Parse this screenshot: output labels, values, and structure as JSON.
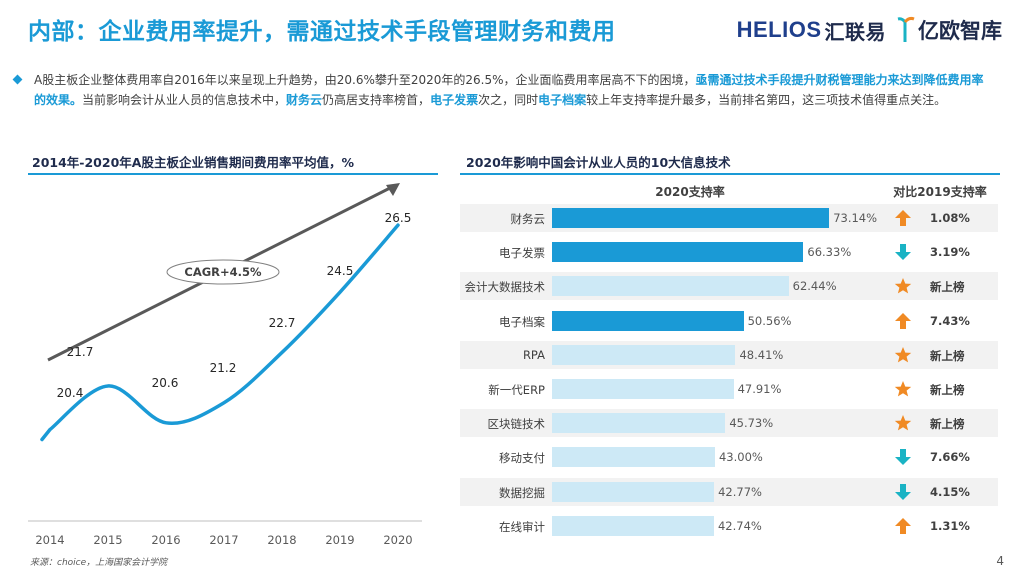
{
  "title": "内部：企业费用率提升，需通过技术手段管理财务和费用",
  "logos": {
    "helios": "HELIOS",
    "helios_cn": "汇联易",
    "yiou": "亿欧智库"
  },
  "bullet": {
    "p1": "A股主板企业整体费用率自2016年以来呈现上升趋势，由20.6%攀升至2020年的26.5%，企业面临费用率居高不下的困境，",
    "p1_hl": "亟需通过技术手段提升财税管理能力来达到降低费用率的效果。",
    "p2": "当前影响会计从业人员的信息技术中，",
    "p2_hl1": "财务云",
    "p3": "仍高居支持率榜首，",
    "p3_hl2": "电子发票",
    "p4": "次之，同时",
    "p4_hl3": "电子档案",
    "p5": "较上年支持率提升最多，当前排名第四，这三项技术值得重点关注。"
  },
  "left_chart_title": "2014年-2020年A股主板企业销售期间费用率平均值，%",
  "right_chart_title": "2020年影响中国会计从业人员的10大信息技术",
  "chart_data": [
    {
      "type": "line",
      "title": "2014年-2020年A股主板企业销售期间费用率平均值，%",
      "x": [
        "2014",
        "2015",
        "2016",
        "2017",
        "2018",
        "2019",
        "2020"
      ],
      "values": [
        20.4,
        21.7,
        20.6,
        21.2,
        22.7,
        24.5,
        26.5
      ],
      "labels": [
        "20.4",
        "21.7",
        "20.6",
        "21.2",
        "22.7",
        "24.5",
        "26.5"
      ],
      "annotation": "CAGR+4.5%",
      "color": "#1a9ad6",
      "trend_color": "#595959"
    },
    {
      "type": "bar",
      "title": "2020年影响中国会计从业人员的10大信息技术",
      "series_header": "2020支持率",
      "compare_header": "对比2019支持率",
      "categories": [
        "财务云",
        "电子发票",
        "会计大数据技术",
        "电子档案",
        "RPA",
        "新一代ERP",
        "区块链技术",
        "移动支付",
        "数据挖掘",
        "在线审计"
      ],
      "values": [
        73.14,
        66.33,
        62.44,
        50.56,
        48.41,
        47.91,
        45.73,
        43.0,
        42.77,
        42.74
      ],
      "value_labels": [
        "73.14%",
        "66.33%",
        "62.44%",
        "50.56%",
        "48.41%",
        "47.91%",
        "45.73%",
        "43.00%",
        "42.77%",
        "42.74%"
      ],
      "highlighted": [
        true,
        true,
        false,
        true,
        false,
        false,
        false,
        false,
        false,
        false
      ],
      "compare": [
        "1.08%",
        "3.19%",
        "新上榜",
        "7.43%",
        "新上榜",
        "新上榜",
        "新上榜",
        "7.66%",
        "4.15%",
        "1.31%"
      ],
      "compare_icons": [
        "arrow-up",
        "arrow-down",
        "star",
        "arrow-up",
        "star",
        "star",
        "star",
        "arrow-down",
        "arrow-down",
        "arrow-up"
      ],
      "colors": {
        "highlight": "#1a9ad6",
        "normal": "#cde9f6",
        "up": "#f08a24",
        "down": "#1ab3c4",
        "star": "#f08a24"
      }
    }
  ],
  "source": "来源：choice，上海国家会计学院",
  "page": "4"
}
